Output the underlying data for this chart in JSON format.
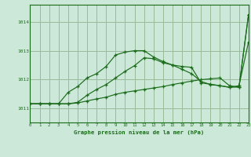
{
  "background_color": "#cce8d8",
  "grid_color": "#99bb99",
  "line_color": "#1a6b1a",
  "title": "Graphe pression niveau de la mer (hPa)",
  "xlim": [
    0,
    23
  ],
  "ylim": [
    1010.5,
    1014.6
  ],
  "yticks": [
    1011,
    1012,
    1013,
    1014
  ],
  "xticks": [
    0,
    1,
    2,
    3,
    4,
    5,
    6,
    7,
    8,
    9,
    10,
    11,
    12,
    13,
    14,
    15,
    16,
    17,
    18,
    19,
    20,
    21,
    22,
    23
  ],
  "series1": [
    1011.15,
    1011.15,
    1011.15,
    1011.15,
    1011.55,
    1011.75,
    1012.05,
    1012.2,
    1012.45,
    1012.85,
    1012.95,
    1013.0,
    1013.0,
    1012.78,
    1012.62,
    1012.5,
    1012.35,
    1012.2,
    1011.93,
    1011.82,
    1011.78,
    1011.72,
    1011.78,
    1013.3
  ],
  "series2": [
    1011.15,
    1011.15,
    1011.15,
    1011.15,
    1011.15,
    1011.2,
    1011.45,
    1011.65,
    1011.82,
    1012.05,
    1012.28,
    1012.48,
    1012.75,
    1012.72,
    1012.58,
    1012.5,
    1012.45,
    1012.42,
    1011.88,
    1011.83,
    1011.78,
    1011.73,
    1011.73,
    1014.25
  ],
  "series3": [
    1011.15,
    1011.15,
    1011.15,
    1011.15,
    1011.15,
    1011.18,
    1011.25,
    1011.32,
    1011.38,
    1011.48,
    1011.55,
    1011.6,
    1011.65,
    1011.7,
    1011.75,
    1011.82,
    1011.88,
    1011.94,
    1011.99,
    1012.02,
    1012.05,
    1011.78,
    1011.73,
    1014.25
  ]
}
